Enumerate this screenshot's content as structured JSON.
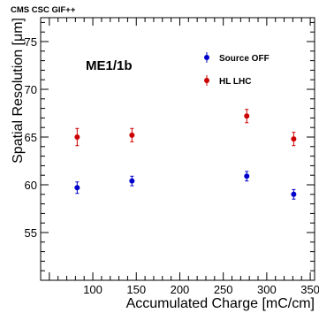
{
  "chart_data": {
    "type": "scatter",
    "header": "CMS CSC GIF++",
    "annotation": "ME1/1b",
    "xlabel": "Accumulated Charge [mC/cm]",
    "ylabel": "Spatial Resolution  [μm]",
    "xlim": [
      40,
      355
    ],
    "ylim": [
      50,
      77.5
    ],
    "xticks": [
      100,
      150,
      200,
      250,
      300,
      350
    ],
    "yticks": [
      55,
      60,
      65,
      70,
      75
    ],
    "grid": false,
    "legend_position": "top-right",
    "series": [
      {
        "name": "Source OFF",
        "color": "#0000cc",
        "x": [
          82,
          145,
          277,
          331
        ],
        "y": [
          59.7,
          60.4,
          60.9,
          59.0
        ],
        "yerr": [
          0.6,
          0.5,
          0.5,
          0.5
        ]
      },
      {
        "name": "HL LHC",
        "color": "#cc0000",
        "x": [
          82,
          145,
          277,
          331
        ],
        "y": [
          65.0,
          65.2,
          67.2,
          64.8
        ],
        "yerr": [
          0.9,
          0.7,
          0.7,
          0.7
        ]
      }
    ]
  }
}
